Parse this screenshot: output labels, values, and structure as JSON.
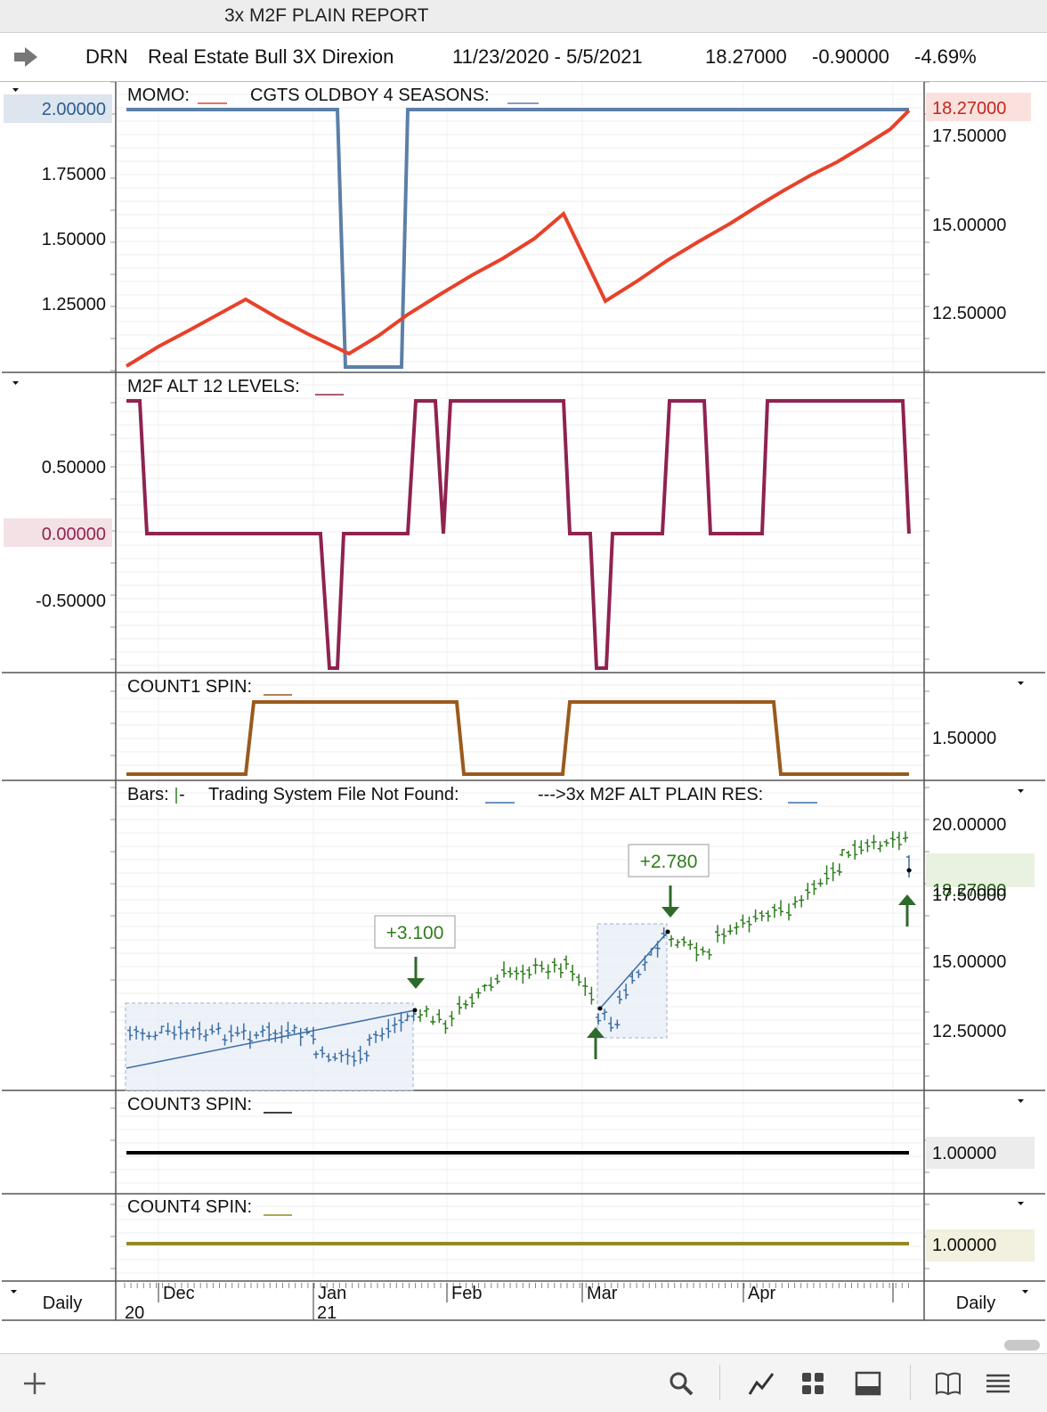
{
  "window": {
    "title": "3x M2F PLAIN REPORT"
  },
  "header": {
    "symbol": "DRN",
    "name": "Real Estate Bull 3X Direxion",
    "date_range": "11/23/2020 - 5/5/2021",
    "last": "18.27000",
    "change": "-0.90000",
    "change_pct": "-4.69%"
  },
  "panels": {
    "momo": {
      "label_momo": "MOMO:",
      "label_cgts": "CGTS OLDBOY 4 SEASONS:",
      "left_ticks": [
        "2.00000",
        "1.75000",
        "1.50000",
        "1.25000"
      ],
      "right_ticks": [
        "18.27000",
        "17.50000",
        "15.00000",
        "12.50000"
      ],
      "momo_color": "#e8412a",
      "cgts_color": "#5b7fa8"
    },
    "m2f": {
      "label": "M2F ALT 12 LEVELS:",
      "left_ticks": [
        "0.50000",
        "0.00000",
        "-0.50000"
      ],
      "color": "#8f2350"
    },
    "count1": {
      "label": "COUNT1 SPIN:",
      "right_ticks": [
        "1.50000"
      ],
      "color": "#9a5a1c"
    },
    "bars": {
      "label_bars": "Bars:",
      "label_trading": "Trading System File Not Found:",
      "label_res": "--->3x M2F ALT PLAIN RES:",
      "right_ticks": [
        "20.00000",
        "18.27000",
        "17.50000",
        "15.00000",
        "12.50000"
      ],
      "trade1_profit": "+3.100",
      "trade2_profit": "+2.780",
      "bar_color_up": "#2e7d1e",
      "bar_color_flat": "#3a6ea5"
    },
    "count3": {
      "label": "COUNT3 SPIN:",
      "right_ticks": [
        "1.00000"
      ],
      "color": "#000000"
    },
    "count4": {
      "label": "COUNT4 SPIN:",
      "right_ticks": [
        "1.00000"
      ],
      "color": "#948a22"
    }
  },
  "axis": {
    "months": [
      "Dec",
      "Jan",
      "Feb",
      "Mar",
      "Apr"
    ],
    "years": [
      "20",
      "21"
    ],
    "period_left": "Daily",
    "period_right": "Daily"
  },
  "toolbar": {
    "icons": [
      "add-icon",
      "search-icon",
      "chart-line-icon",
      "grid-icon",
      "panel-icon",
      "book-icon",
      "list-icon"
    ]
  }
}
